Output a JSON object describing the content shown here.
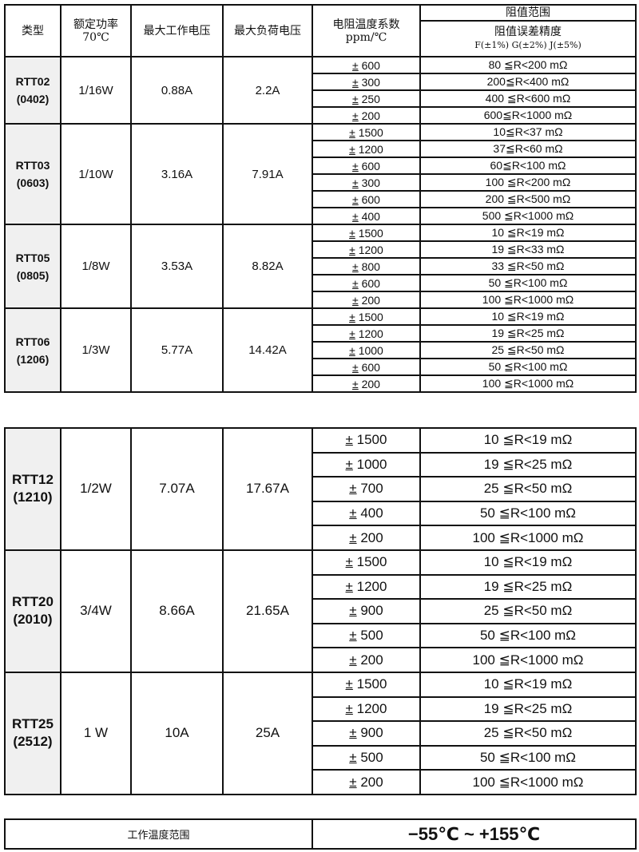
{
  "header": {
    "type": "类型",
    "power": [
      "额定功率",
      "70℃"
    ],
    "max_work": "最大工作电压",
    "max_load": "最大负荷电压",
    "tcr": [
      "电阻温度系数",
      "ppm/℃"
    ],
    "range": "阻值范围",
    "tolerance": [
      "阻值误差精度",
      "F(±1%) G(±2%) J(±5%)"
    ]
  },
  "groups": [
    {
      "type": [
        "RTT02",
        "(0402)"
      ],
      "power": "1/16W",
      "work": "0.88A",
      "load": "2.2A",
      "rows": [
        [
          "600",
          "80 ≦R<200 mΩ"
        ],
        [
          "300",
          "200≦R<400 mΩ"
        ],
        [
          "250",
          "400 ≦R<600 mΩ"
        ],
        [
          "200",
          "600≦R<1000 mΩ"
        ]
      ]
    },
    {
      "type": [
        "RTT03",
        "(0603)"
      ],
      "power": "1/10W",
      "work": "3.16A",
      "load": "7.91A",
      "rows": [
        [
          "1500",
          "10≦R<37 mΩ"
        ],
        [
          "1200",
          "37≦R<60 mΩ"
        ],
        [
          "600",
          "60≦R<100 mΩ"
        ],
        [
          "300",
          "100 ≦R<200 mΩ"
        ],
        [
          "600",
          "200 ≦R<500 mΩ"
        ],
        [
          "400",
          "500 ≦R<1000 mΩ"
        ]
      ]
    },
    {
      "type": [
        "RTT05",
        "(0805)"
      ],
      "power": "1/8W",
      "work": "3.53A",
      "load": "8.82A",
      "rows": [
        [
          "1500",
          "10 ≦R<19 mΩ"
        ],
        [
          "1200",
          "19 ≦R<33 mΩ"
        ],
        [
          "800",
          "33 ≦R<50 mΩ"
        ],
        [
          "600",
          "50 ≦R<100 mΩ"
        ],
        [
          "200",
          "100 ≦R<1000 mΩ"
        ]
      ]
    },
    {
      "type": [
        "RTT06",
        "(1206)"
      ],
      "power": "1/3W",
      "work": "5.77A",
      "load": "14.42A",
      "rows": [
        [
          "1500",
          "10 ≦R<19 mΩ"
        ],
        [
          "1200",
          "19 ≦R<25 mΩ"
        ],
        [
          "1000",
          "25 ≦R<50 mΩ"
        ],
        [
          "600",
          "50 ≦R<100 mΩ"
        ],
        [
          "200",
          "100 ≦R<1000 mΩ"
        ]
      ]
    },
    {
      "type": [
        "RTT12",
        "(1210)"
      ],
      "power": "1/2W",
      "work": "7.07A",
      "load": "17.67A",
      "rows": [
        [
          "1500",
          "10 ≦R<19 mΩ"
        ],
        [
          "1000",
          "19 ≦R<25 mΩ"
        ],
        [
          "700",
          "25 ≦R<50 mΩ"
        ],
        [
          "400",
          "50 ≦R<100 mΩ"
        ],
        [
          "200",
          "100 ≦R<1000 mΩ"
        ]
      ]
    },
    {
      "type": [
        "RTT20",
        "(2010)"
      ],
      "power": "3/4W",
      "work": "8.66A",
      "load": "21.65A",
      "rows": [
        [
          "1500",
          "10 ≦R<19 mΩ"
        ],
        [
          "1200",
          "19 ≦R<25 mΩ"
        ],
        [
          "900",
          "25 ≦R<50 mΩ"
        ],
        [
          "500",
          "50 ≦R<100 mΩ"
        ],
        [
          "200",
          "100 ≦R<1000 mΩ"
        ]
      ]
    },
    {
      "type": [
        "RTT25",
        "(2512)"
      ],
      "power": "1 W",
      "work": "10A",
      "load": "25A",
      "rows": [
        [
          "1500",
          "10 ≦R<19 mΩ"
        ],
        [
          "1200",
          "19 ≦R<25 mΩ"
        ],
        [
          "900",
          "25 ≦R<50 mΩ"
        ],
        [
          "500",
          "50 ≦R<100 mΩ"
        ],
        [
          "200",
          "100 ≦R<1000 mΩ"
        ]
      ]
    }
  ],
  "plus_minus": "±",
  "footer": {
    "label": "工作温度范围",
    "value": "−55℃ ~ +155℃"
  }
}
